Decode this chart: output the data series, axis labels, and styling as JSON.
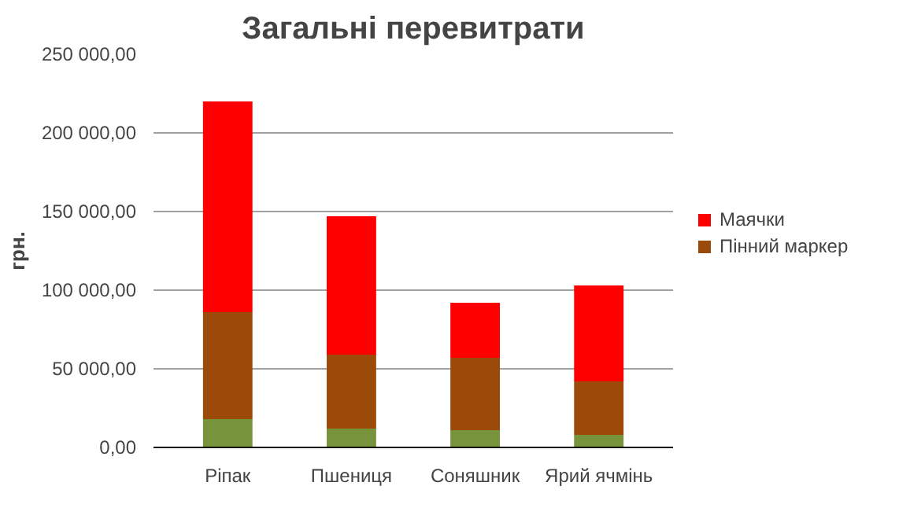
{
  "chart_data": {
    "type": "bar",
    "title": "Загальні перевитрати",
    "ylabel": "грн.",
    "stacked": true,
    "categories": [
      "Ріпак",
      "Пшениця",
      "Соняшник",
      "Ярий ячмінь"
    ],
    "series": [
      {
        "color": "#77933c",
        "values": [
          18000,
          12000,
          11000,
          8000
        ]
      },
      {
        "name": "Пінний маркер",
        "color": "#9c4a0a",
        "values": [
          68000,
          47000,
          46000,
          34000
        ]
      },
      {
        "name": "Маячки",
        "color": "#ff0000",
        "values": [
          134000,
          88000,
          35000,
          61000
        ]
      }
    ],
    "ylim": [
      0,
      250000
    ],
    "yticks": [
      {
        "value": 0,
        "label": "0,00"
      },
      {
        "value": 50000,
        "label": "50 000,00"
      },
      {
        "value": 100000,
        "label": "100 000,00"
      },
      {
        "value": 150000,
        "label": "150 000,00"
      },
      {
        "value": 200000,
        "label": "200 000,00"
      },
      {
        "value": 250000,
        "label": "250 000,00"
      }
    ],
    "grid": "y",
    "legend": "right"
  }
}
